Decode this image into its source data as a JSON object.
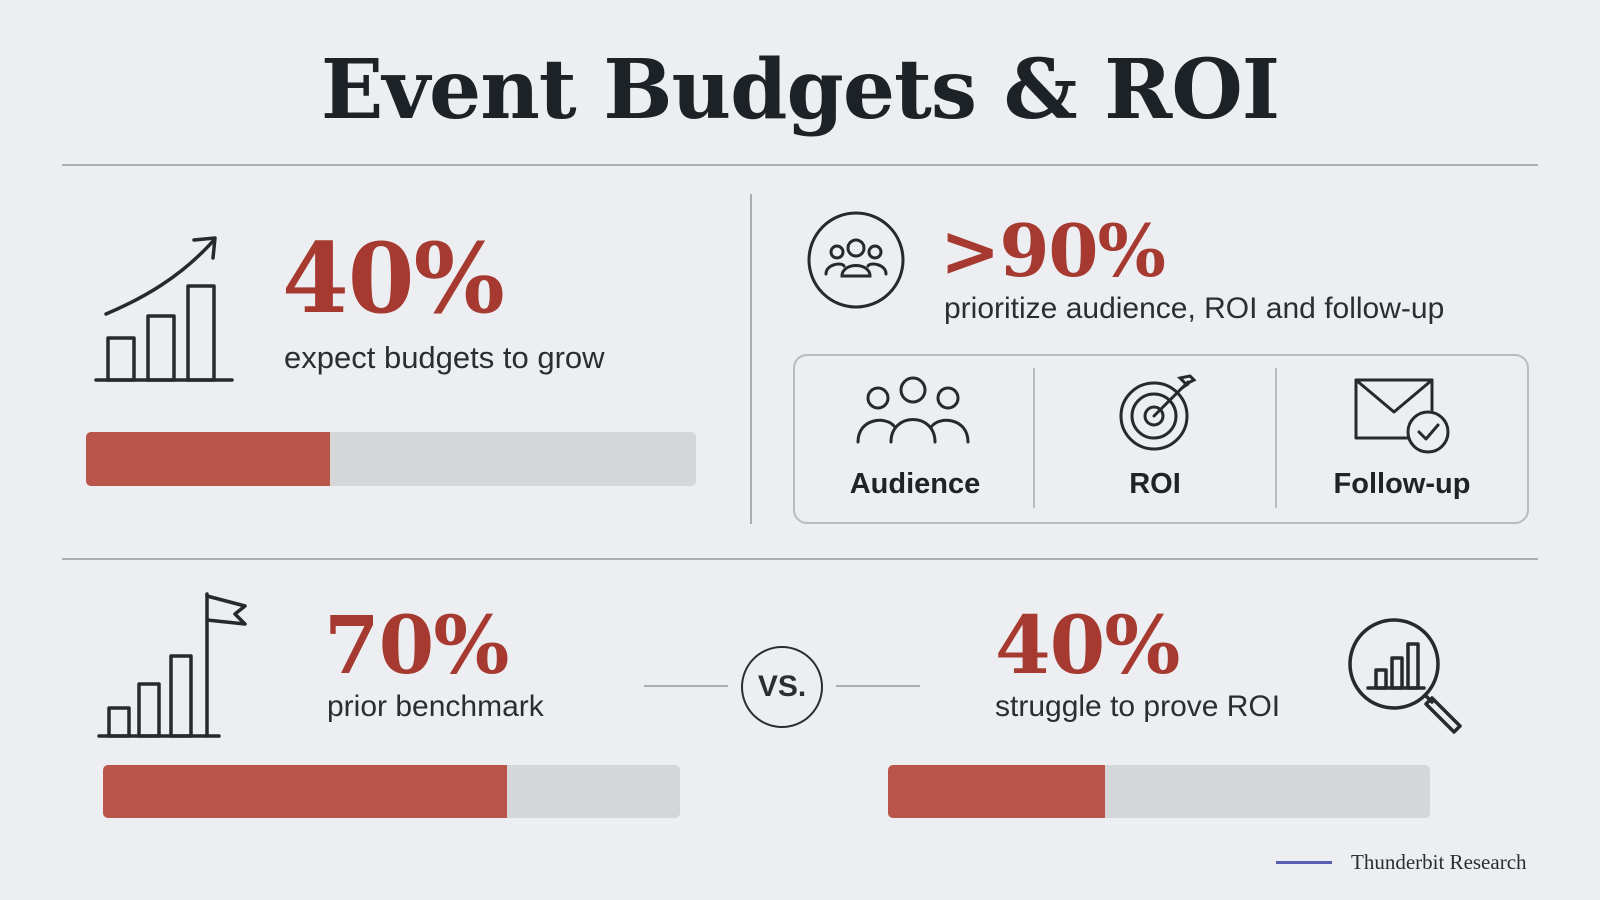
{
  "title": "Event Budgets & ROI",
  "stats": {
    "budget_growth": {
      "value": "40%",
      "caption": "expect budgets to grow",
      "fraction": 0.4
    },
    "priorities": {
      "value": ">90%",
      "caption": "prioritize audience, ROI and follow-up"
    },
    "prior_benchmark": {
      "value": "70%",
      "caption": "prior benchmark",
      "fraction": 0.7
    },
    "prove_roi": {
      "value": "40%",
      "caption": "struggle to prove ROI",
      "fraction": 0.4
    }
  },
  "categories": [
    {
      "label": "Audience",
      "icon": "people-group-icon"
    },
    {
      "label": "ROI",
      "icon": "target-arrow-icon"
    },
    {
      "label": "Follow-up",
      "icon": "envelope-check-icon"
    }
  ],
  "vs_label": "VS.",
  "credit": "Thunderbit Research",
  "colors": {
    "accent": "#a63a30",
    "bar_fill": "#b9554a",
    "bar_track": "#d5d6d8",
    "credit_line": "#5a5fb5"
  }
}
